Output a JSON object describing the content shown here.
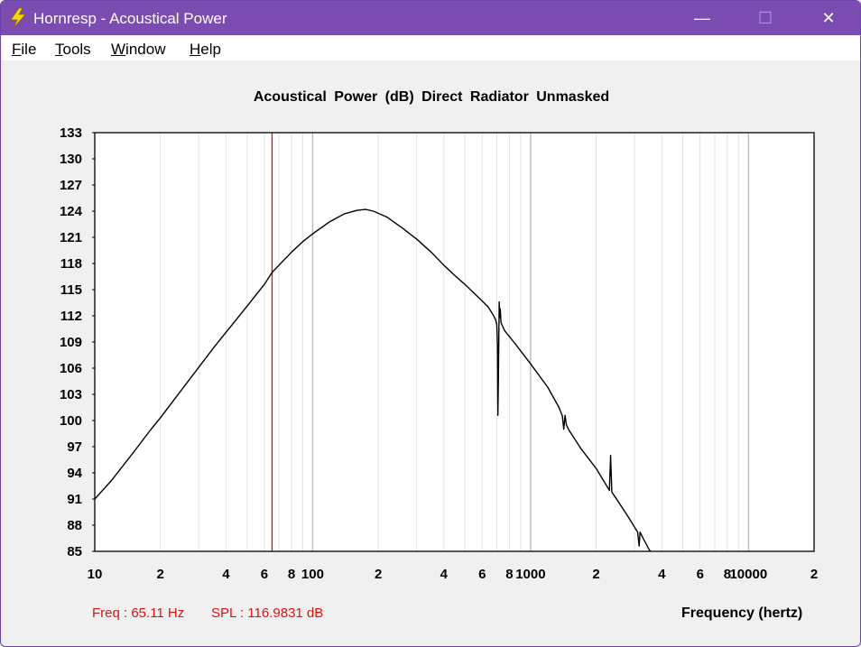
{
  "window": {
    "title": "Hornresp - Acoustical Power",
    "minimize_glyph": "—",
    "maximize_glyph": "☐",
    "close_glyph": "✕",
    "app_icon": "lightning-bolt-icon",
    "titlebar_color": "#7a4bb0"
  },
  "menu": {
    "items": [
      {
        "label": "File"
      },
      {
        "label": "Tools"
      },
      {
        "label": "Window"
      },
      {
        "label": "Help"
      }
    ]
  },
  "status": {
    "freq_text": "Freq : 65.11 Hz",
    "spl_text": "SPL : 116.9831 dB",
    "color": "#e01010"
  },
  "chart_data": {
    "type": "line",
    "title": "Acoustical Power (dB)   Direct Radiator   Unmasked",
    "xlabel": "Frequency (hertz)",
    "ylabel": "",
    "x_scale": "log",
    "xlim": [
      10,
      20000
    ],
    "ylim": [
      85,
      133
    ],
    "y_ticks": [
      133,
      130,
      127,
      124,
      121,
      118,
      115,
      112,
      109,
      106,
      103,
      100,
      97,
      94,
      91,
      88,
      85
    ],
    "x_ticks": [
      {
        "value": 10,
        "label": "10"
      },
      {
        "value": 20,
        "label": "2"
      },
      {
        "value": 40,
        "label": "4"
      },
      {
        "value": 60,
        "label": "6"
      },
      {
        "value": 80,
        "label": "8"
      },
      {
        "value": 100,
        "label": "100"
      },
      {
        "value": 200,
        "label": "2"
      },
      {
        "value": 400,
        "label": "4"
      },
      {
        "value": 600,
        "label": "6"
      },
      {
        "value": 800,
        "label": "8"
      },
      {
        "value": 1000,
        "label": "1000"
      },
      {
        "value": 2000,
        "label": "2"
      },
      {
        "value": 4000,
        "label": "4"
      },
      {
        "value": 6000,
        "label": "6"
      },
      {
        "value": 8000,
        "label": "8"
      },
      {
        "value": 10000,
        "label": "10000"
      },
      {
        "value": 20000,
        "label": "2"
      }
    ],
    "grid": true,
    "cursor": {
      "x": 65.11,
      "color": "#e01010"
    },
    "series": [
      {
        "color": "#000000",
        "points": [
          [
            10,
            91.0
          ],
          [
            12,
            93.2
          ],
          [
            15,
            96.3
          ],
          [
            18,
            98.9
          ],
          [
            20,
            100.3
          ],
          [
            25,
            103.5
          ],
          [
            30,
            106.1
          ],
          [
            35,
            108.3
          ],
          [
            40,
            110.1
          ],
          [
            50,
            113.1
          ],
          [
            60,
            115.6
          ],
          [
            65.11,
            116.98
          ],
          [
            70,
            117.8
          ],
          [
            80,
            119.3
          ],
          [
            90,
            120.5
          ],
          [
            100,
            121.4
          ],
          [
            120,
            122.8
          ],
          [
            140,
            123.7
          ],
          [
            160,
            124.1
          ],
          [
            175,
            124.2
          ],
          [
            190,
            124.0
          ],
          [
            220,
            123.3
          ],
          [
            260,
            122.0
          ],
          [
            300,
            120.8
          ],
          [
            350,
            119.3
          ],
          [
            400,
            117.8
          ],
          [
            450,
            116.6
          ],
          [
            500,
            115.6
          ],
          [
            550,
            114.6
          ],
          [
            600,
            113.7
          ],
          [
            640,
            113.0
          ],
          [
            670,
            112.2
          ],
          [
            690,
            111.6
          ],
          [
            700,
            111.0
          ],
          [
            705,
            108.5
          ],
          [
            708,
            100.6
          ],
          [
            712,
            105.0
          ],
          [
            718,
            113.6
          ],
          [
            722,
            111.8
          ],
          [
            726,
            112.8
          ],
          [
            732,
            111.2
          ],
          [
            760,
            110.3
          ],
          [
            850,
            108.8
          ],
          [
            1000,
            106.5
          ],
          [
            1200,
            103.8
          ],
          [
            1350,
            101.5
          ],
          [
            1400,
            100.5
          ],
          [
            1420,
            99.0
          ],
          [
            1440,
            100.6
          ],
          [
            1460,
            99.5
          ],
          [
            1500,
            98.9
          ],
          [
            1700,
            96.8
          ],
          [
            2000,
            94.5
          ],
          [
            2200,
            92.8
          ],
          [
            2300,
            92.0
          ],
          [
            2330,
            96.0
          ],
          [
            2360,
            91.8
          ],
          [
            2450,
            91.2
          ],
          [
            2800,
            89.0
          ],
          [
            3100,
            87.2
          ],
          [
            3150,
            85.6
          ],
          [
            3180,
            87.2
          ],
          [
            3300,
            86.4
          ],
          [
            3500,
            85.2
          ],
          [
            3550,
            85.0
          ]
        ]
      }
    ]
  }
}
